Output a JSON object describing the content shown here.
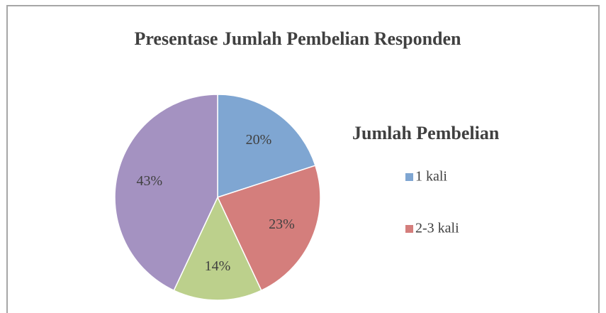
{
  "chart_data": {
    "type": "pie",
    "title": "Presentase Jumlah Pembelian Responden",
    "legend_title": "Jumlah Pembelian",
    "categories": [
      "1 kali",
      "2-3 kali",
      null,
      null
    ],
    "values": [
      20,
      23,
      14,
      43
    ],
    "value_labels": [
      "20%",
      "23%",
      "14%",
      "43%"
    ],
    "colors": [
      "#7fa6d2",
      "#d47e7c",
      "#bcd08c",
      "#a492c1"
    ],
    "legend": "right"
  }
}
